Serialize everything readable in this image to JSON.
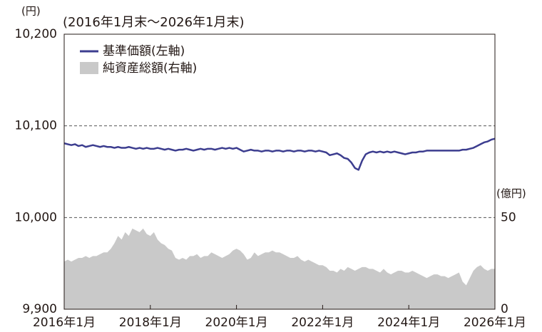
{
  "chart_data": {
    "type": "line",
    "subtitle": "(2016年1月末～2026年1月末)",
    "y_label": "(円)",
    "y2_label": "(億円)",
    "x": [
      "2016-01",
      "2016-02",
      "2016-03",
      "2016-04",
      "2016-05",
      "2016-06",
      "2016-07",
      "2016-08",
      "2016-09",
      "2016-10",
      "2016-11",
      "2016-12",
      "2017-01",
      "2017-02",
      "2017-03",
      "2017-04",
      "2017-05",
      "2017-06",
      "2017-07",
      "2017-08",
      "2017-09",
      "2017-10",
      "2017-11",
      "2017-12",
      "2018-01",
      "2018-02",
      "2018-03",
      "2018-04",
      "2018-05",
      "2018-06",
      "2018-07",
      "2018-08",
      "2018-09",
      "2018-10",
      "2018-11",
      "2018-12",
      "2019-01",
      "2019-02",
      "2019-03",
      "2019-04",
      "2019-05",
      "2019-06",
      "2019-07",
      "2019-08",
      "2019-09",
      "2019-10",
      "2019-11",
      "2019-12",
      "2020-01",
      "2020-02",
      "2020-03",
      "2020-04",
      "2020-05",
      "2020-06",
      "2020-07",
      "2020-08",
      "2020-09",
      "2020-10",
      "2020-11",
      "2020-12",
      "2021-01",
      "2021-02",
      "2021-03",
      "2021-04",
      "2021-05",
      "2021-06",
      "2021-07",
      "2021-08",
      "2021-09",
      "2021-10",
      "2021-11",
      "2021-12",
      "2022-01",
      "2022-02",
      "2022-03",
      "2022-04",
      "2022-05",
      "2022-06",
      "2022-07",
      "2022-08",
      "2022-09",
      "2022-10",
      "2022-11",
      "2022-12",
      "2023-01",
      "2023-02",
      "2023-03",
      "2023-04",
      "2023-05",
      "2023-06",
      "2023-07",
      "2023-08",
      "2023-09",
      "2023-10",
      "2023-11",
      "2023-12",
      "2024-01",
      "2024-02",
      "2024-03",
      "2024-04",
      "2024-05",
      "2024-06",
      "2024-07",
      "2024-08",
      "2024-09",
      "2024-10",
      "2024-11",
      "2024-12",
      "2025-01",
      "2025-02",
      "2025-03",
      "2025-04",
      "2025-05",
      "2025-06",
      "2025-07",
      "2025-08",
      "2025-09",
      "2025-10",
      "2025-11",
      "2025-12",
      "2026-01"
    ],
    "series": [
      {
        "name": "純資産総額(右軸)",
        "kind": "area",
        "axis": "y2",
        "color": "#c9c9c9",
        "values": [
          26,
          27,
          26,
          27,
          28,
          28,
          29,
          28,
          29,
          29,
          30,
          31,
          31,
          33,
          36,
          40,
          38,
          42,
          40,
          44,
          43,
          42,
          44,
          41,
          40,
          42,
          38,
          36,
          35,
          33,
          32,
          28,
          27,
          28,
          27,
          29,
          29,
          30,
          28,
          29,
          29,
          31,
          30,
          29,
          28,
          29,
          30,
          32,
          33,
          32,
          30,
          27,
          28,
          31,
          29,
          30,
          31,
          31,
          32,
          31,
          31,
          30,
          29,
          28,
          28,
          29,
          27,
          26,
          27,
          26,
          25,
          24,
          24,
          23,
          21,
          21,
          20,
          22,
          21,
          23,
          22,
          21,
          22,
          23,
          23,
          22,
          22,
          21,
          20,
          22,
          20,
          19,
          20,
          21,
          21,
          20,
          20,
          21,
          20,
          19,
          18,
          17,
          18,
          19,
          19,
          18,
          18,
          17,
          18,
          19,
          20,
          15,
          13,
          17,
          21,
          23,
          24,
          22,
          21,
          22,
          22
        ]
      },
      {
        "name": "基準価額(左軸)",
        "kind": "line",
        "color": "#3c3d8f",
        "values": [
          10081,
          10080,
          10079,
          10080,
          10078,
          10079,
          10077,
          10078,
          10079,
          10078,
          10077,
          10078,
          10077,
          10077,
          10076,
          10077,
          10076,
          10076,
          10077,
          10076,
          10075,
          10076,
          10075,
          10076,
          10075,
          10075,
          10076,
          10075,
          10074,
          10075,
          10074,
          10073,
          10074,
          10074,
          10075,
          10074,
          10073,
          10074,
          10075,
          10074,
          10075,
          10075,
          10074,
          10075,
          10076,
          10075,
          10076,
          10075,
          10076,
          10074,
          10072,
          10073,
          10074,
          10073,
          10073,
          10072,
          10073,
          10073,
          10072,
          10073,
          10073,
          10072,
          10073,
          10073,
          10072,
          10073,
          10073,
          10072,
          10073,
          10073,
          10072,
          10073,
          10072,
          10071,
          10068,
          10069,
          10070,
          10068,
          10065,
          10064,
          10060,
          10054,
          10052,
          10062,
          10069,
          10071,
          10072,
          10071,
          10072,
          10071,
          10072,
          10071,
          10072,
          10071,
          10070,
          10069,
          10070,
          10071,
          10071,
          10072,
          10072,
          10073,
          10073,
          10073,
          10073,
          10073,
          10073,
          10073,
          10073,
          10073,
          10073,
          10074,
          10074,
          10075,
          10076,
          10078,
          10080,
          10082,
          10083,
          10085,
          10086
        ]
      }
    ],
    "ylim": [
      9900,
      10200
    ],
    "yticks": [
      {
        "value": 9900,
        "label": "9,900"
      },
      {
        "value": 10000,
        "label": "10,000"
      },
      {
        "value": 10100,
        "label": "10,100"
      },
      {
        "value": 10200,
        "label": "10,200"
      }
    ],
    "y2lim": [
      0,
      150
    ],
    "y2ticks": [
      0,
      50
    ],
    "xticks": [
      {
        "value": "2016-01",
        "label": "2016年1月"
      },
      {
        "value": "2018-01",
        "label": "2018年1月"
      },
      {
        "value": "2020-01",
        "label": "2020年1月"
      },
      {
        "value": "2022-01",
        "label": "2022年1月"
      },
      {
        "value": "2024-01",
        "label": "2024年1月"
      },
      {
        "value": "2026-01",
        "label": "2026年1月"
      }
    ],
    "grid": true,
    "legend": "upper left"
  }
}
